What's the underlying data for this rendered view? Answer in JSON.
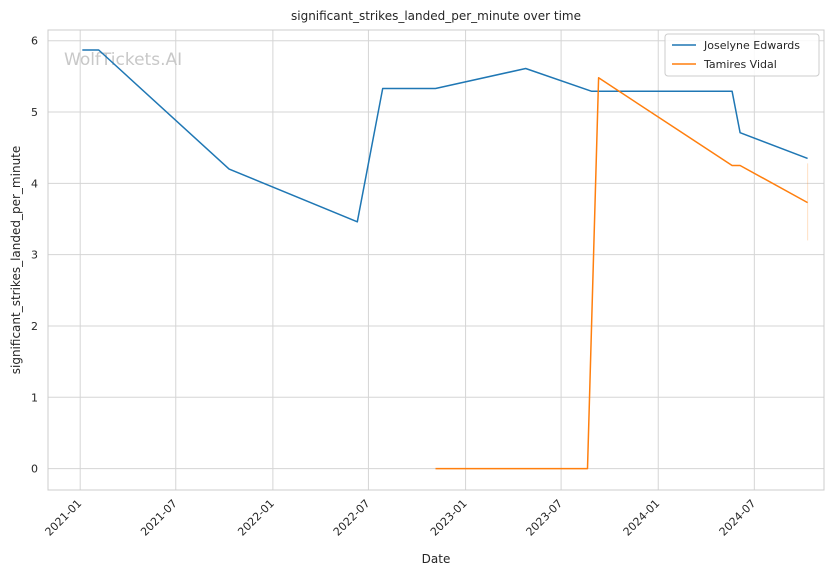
{
  "watermark": "WolfTickets.AI",
  "chart_data": {
    "type": "line",
    "title": "significant_strikes_landed_per_minute over time",
    "xlabel": "Date",
    "ylabel": "significant_strikes_landed_per_minute",
    "x_type": "date",
    "xlim": [
      "2020-11-01",
      "2024-11-10"
    ],
    "ylim": [
      -0.3,
      6.15
    ],
    "x_ticks": [
      "2021-01",
      "2021-07",
      "2022-01",
      "2022-07",
      "2023-01",
      "2023-07",
      "2024-01",
      "2024-07"
    ],
    "y_ticks": [
      0,
      1,
      2,
      3,
      4,
      5,
      6
    ],
    "grid": true,
    "legend_position": "top-right",
    "series": [
      {
        "name": "Joselyne Edwards",
        "color": "#1f77b4",
        "points": [
          [
            "2021-01-05",
            5.87
          ],
          [
            "2021-02-05",
            5.87
          ],
          [
            "2021-10-10",
            4.2
          ],
          [
            "2022-06-10",
            3.46
          ],
          [
            "2022-07-28",
            5.33
          ],
          [
            "2022-11-05",
            5.33
          ],
          [
            "2023-04-25",
            5.61
          ],
          [
            "2023-08-28",
            5.29
          ],
          [
            "2024-05-20",
            5.29
          ],
          [
            "2024-06-04",
            4.71
          ],
          [
            "2024-10-10",
            4.35
          ]
        ]
      },
      {
        "name": "Tamires Vidal",
        "color": "#ff7f0e",
        "points": [
          [
            "2022-11-05",
            0.0
          ],
          [
            "2023-08-20",
            0.0
          ],
          [
            "2023-09-10",
            5.48
          ],
          [
            "2024-05-20",
            4.25
          ],
          [
            "2024-06-04",
            4.25
          ],
          [
            "2024-10-10",
            3.73
          ]
        ]
      }
    ]
  }
}
